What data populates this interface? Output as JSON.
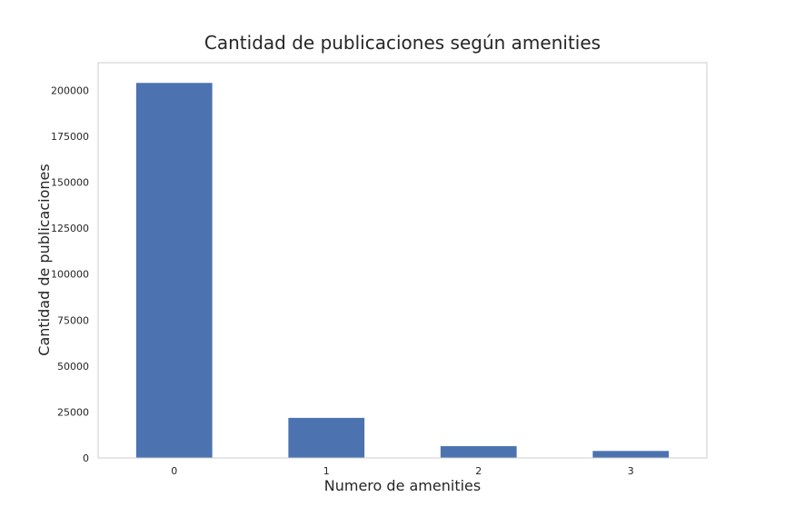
{
  "chart_data": {
    "type": "bar",
    "title": "Cantidad de publicaciones según amenities",
    "xlabel": "Numero de amenities",
    "ylabel": "Cantidad de publicaciones",
    "categories": [
      "0",
      "1",
      "2",
      "3"
    ],
    "values": [
      204000,
      21800,
      6400,
      3800
    ],
    "ylim": [
      0,
      215000
    ],
    "yticks": [
      0,
      25000,
      50000,
      75000,
      100000,
      125000,
      150000,
      175000,
      200000
    ],
    "ytick_labels": [
      "0",
      "25000",
      "50000",
      "75000",
      "100000",
      "125000",
      "150000",
      "175000",
      "200000"
    ],
    "grid": false,
    "legend": "none",
    "colors": {
      "bar": "#4c72b0",
      "frame": "#cccccc",
      "text": "#262626",
      "background": "#ffffff"
    }
  }
}
